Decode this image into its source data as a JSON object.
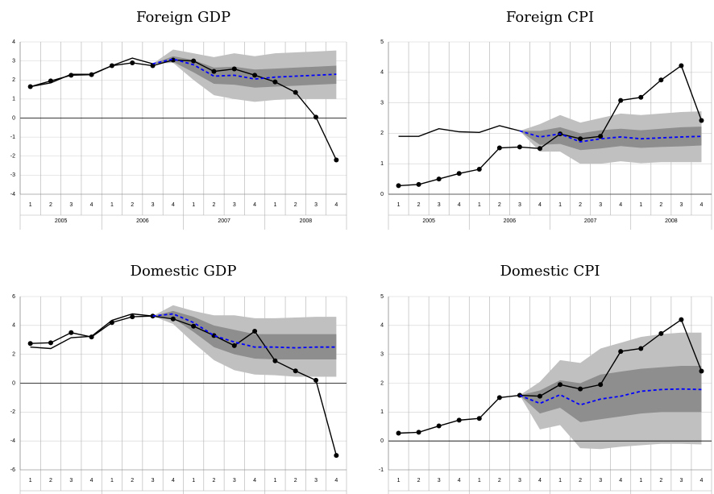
{
  "chart_data": [
    {
      "type": "line",
      "title": "Foreign GDP",
      "categories": [
        "1",
        "2",
        "3",
        "4",
        "1",
        "2",
        "3",
        "4",
        "1",
        "2",
        "3",
        "4",
        "1",
        "2",
        "3",
        "4"
      ],
      "years": [
        "2005",
        "2006",
        "2007",
        "2008"
      ],
      "ylim": [
        -4,
        4
      ],
      "yticks": [
        -4,
        -3,
        -2,
        -1,
        0,
        1,
        2,
        3,
        4
      ],
      "grid": true,
      "bands": [
        {
          "color": "#c0c0c0",
          "lower": [
            null,
            null,
            null,
            null,
            null,
            null,
            2.85,
            2.9,
            2.0,
            1.2,
            1.0,
            0.85,
            0.95,
            1.0,
            1.0,
            1.0
          ],
          "upper": [
            null,
            null,
            null,
            null,
            null,
            null,
            2.85,
            3.6,
            3.4,
            3.2,
            3.4,
            3.25,
            3.4,
            3.45,
            3.5,
            3.55
          ]
        },
        {
          "color": "#8e8e8e",
          "lower": [
            null,
            null,
            null,
            null,
            null,
            null,
            2.85,
            2.95,
            2.4,
            1.8,
            1.75,
            1.6,
            1.65,
            1.7,
            1.75,
            1.8
          ],
          "upper": [
            null,
            null,
            null,
            null,
            null,
            null,
            2.85,
            3.25,
            3.05,
            2.65,
            2.7,
            2.55,
            2.6,
            2.65,
            2.7,
            2.75
          ]
        }
      ],
      "series": [
        {
          "color": "#000000",
          "markers": true,
          "values": [
            1.65,
            1.95,
            2.25,
            2.28,
            2.75,
            2.9,
            2.75,
            3.05,
            3.0,
            2.45,
            2.58,
            2.25,
            1.9,
            1.35,
            0.05,
            -2.2
          ]
        },
        {
          "color": "#000000",
          "values": [
            1.65,
            1.85,
            2.3,
            2.3,
            2.75,
            3.15,
            2.85,
            null,
            null,
            null,
            null,
            null,
            null,
            null,
            null,
            null
          ]
        },
        {
          "color": "#0000ff",
          "dash": true,
          "values": [
            null,
            null,
            null,
            null,
            null,
            null,
            2.85,
            3.1,
            2.8,
            2.2,
            2.25,
            2.05,
            2.15,
            2.2,
            2.25,
            2.3
          ]
        }
      ]
    },
    {
      "type": "line",
      "title": "Foreign CPI",
      "categories": [
        "1",
        "2",
        "3",
        "4",
        "1",
        "2",
        "3",
        "4",
        "1",
        "2",
        "3",
        "4",
        "1",
        "2",
        "3",
        "4"
      ],
      "years": [
        "2005",
        "2006",
        "2007",
        "2008"
      ],
      "ylim": [
        0,
        5
      ],
      "yticks": [
        0,
        1,
        2,
        3,
        4,
        5
      ],
      "grid": true,
      "bands": [
        {
          "color": "#c0c0c0",
          "lower": [
            null,
            null,
            null,
            null,
            null,
            null,
            2.08,
            1.4,
            1.4,
            1.0,
            1.0,
            1.08,
            1.02,
            1.05,
            1.05,
            1.05
          ],
          "upper": [
            null,
            null,
            null,
            null,
            null,
            null,
            2.08,
            2.3,
            2.6,
            2.35,
            2.5,
            2.65,
            2.6,
            2.65,
            2.7,
            2.72
          ]
        },
        {
          "color": "#8e8e8e",
          "lower": [
            null,
            null,
            null,
            null,
            null,
            null,
            2.08,
            1.62,
            1.65,
            1.45,
            1.5,
            1.58,
            1.52,
            1.55,
            1.57,
            1.6
          ],
          "upper": [
            null,
            null,
            null,
            null,
            null,
            null,
            2.08,
            2.08,
            2.2,
            2.0,
            2.1,
            2.15,
            2.1,
            2.15,
            2.2,
            2.22
          ]
        }
      ],
      "series": [
        {
          "color": "#000000",
          "markers": true,
          "values": [
            0.28,
            0.32,
            0.5,
            0.68,
            0.82,
            1.52,
            1.55,
            1.5,
            1.98,
            1.82,
            1.9,
            3.08,
            3.18,
            3.75,
            4.22,
            2.42
          ]
        },
        {
          "color": "#000000",
          "values": [
            1.9,
            1.9,
            2.15,
            2.05,
            2.03,
            2.25,
            2.08,
            null,
            null,
            null,
            null,
            null,
            null,
            null,
            null,
            null
          ]
        },
        {
          "color": "#0000ff",
          "dash": true,
          "values": [
            null,
            null,
            null,
            null,
            null,
            null,
            2.08,
            1.88,
            1.98,
            1.72,
            1.82,
            1.88,
            1.82,
            1.85,
            1.88,
            1.9
          ]
        }
      ]
    },
    {
      "type": "line",
      "title": "Domestic GDP",
      "categories": [
        "1",
        "2",
        "3",
        "4",
        "1",
        "2",
        "3",
        "4",
        "1",
        "2",
        "3",
        "4",
        "1",
        "2",
        "3",
        "4"
      ],
      "years": [
        "2005",
        "2006",
        "2007",
        "2008"
      ],
      "ylim": [
        -6,
        6
      ],
      "yticks": [
        -6,
        -4,
        -2,
        0,
        2,
        4,
        6
      ],
      "grid": true,
      "bands": [
        {
          "color": "#c0c0c0",
          "lower": [
            null,
            null,
            null,
            null,
            null,
            null,
            4.65,
            4.1,
            2.8,
            1.6,
            0.9,
            0.6,
            0.55,
            0.45,
            0.45,
            0.45
          ],
          "upper": [
            null,
            null,
            null,
            null,
            null,
            null,
            4.65,
            5.4,
            5.0,
            4.7,
            4.7,
            4.5,
            4.5,
            4.55,
            4.6,
            4.6
          ]
        },
        {
          "color": "#8e8e8e",
          "lower": [
            null,
            null,
            null,
            null,
            null,
            null,
            4.65,
            4.5,
            3.55,
            2.5,
            2.0,
            1.7,
            1.65,
            1.65,
            1.65,
            1.65
          ],
          "upper": [
            null,
            null,
            null,
            null,
            null,
            null,
            4.65,
            5.0,
            4.6,
            4.0,
            3.7,
            3.4,
            3.4,
            3.4,
            3.4,
            3.4
          ]
        }
      ],
      "series": [
        {
          "color": "#000000",
          "markers": true,
          "values": [
            2.75,
            2.8,
            3.5,
            3.2,
            4.2,
            4.6,
            4.65,
            4.45,
            3.95,
            3.3,
            2.6,
            3.6,
            1.55,
            0.85,
            0.2,
            -5.0
          ]
        },
        {
          "color": "#000000",
          "values": [
            2.5,
            2.4,
            3.15,
            3.25,
            4.35,
            4.8,
            4.65,
            null,
            null,
            null,
            null,
            null,
            null,
            null,
            null,
            null
          ]
        },
        {
          "color": "#0000ff",
          "dash": true,
          "values": [
            null,
            null,
            null,
            null,
            null,
            null,
            4.65,
            4.8,
            4.2,
            3.3,
            2.85,
            2.5,
            2.5,
            2.45,
            2.5,
            2.5
          ]
        }
      ]
    },
    {
      "type": "line",
      "title": "Domestic CPI",
      "categories": [
        "1",
        "2",
        "3",
        "4",
        "1",
        "2",
        "3",
        "4",
        "1",
        "2",
        "3",
        "4",
        "1",
        "2",
        "3",
        "4"
      ],
      "years": [
        "2005",
        "2006",
        "2007",
        "2008"
      ],
      "ylim": [
        -1,
        5
      ],
      "yticks": [
        -1,
        0,
        1,
        2,
        3,
        4,
        5
      ],
      "grid": true,
      "bands": [
        {
          "color": "#c0c0c0",
          "lower": [
            null,
            null,
            null,
            null,
            null,
            null,
            1.58,
            0.4,
            0.55,
            -0.25,
            -0.28,
            -0.2,
            -0.15,
            -0.1,
            -0.1,
            -0.12
          ],
          "upper": [
            null,
            null,
            null,
            null,
            null,
            null,
            1.58,
            2.05,
            2.8,
            2.7,
            3.2,
            3.4,
            3.6,
            3.7,
            3.75,
            3.75
          ]
        },
        {
          "color": "#8e8e8e",
          "lower": [
            null,
            null,
            null,
            null,
            null,
            null,
            1.58,
            0.95,
            1.15,
            0.65,
            0.75,
            0.85,
            0.95,
            1.0,
            1.0,
            1.0
          ],
          "upper": [
            null,
            null,
            null,
            null,
            null,
            null,
            1.58,
            1.75,
            2.1,
            2.0,
            2.3,
            2.4,
            2.5,
            2.55,
            2.6,
            2.6
          ]
        }
      ],
      "series": [
        {
          "color": "#000000",
          "markers": true,
          "values": [
            0.27,
            0.3,
            0.52,
            0.72,
            0.78,
            1.5,
            1.58,
            1.55,
            1.95,
            1.8,
            1.95,
            3.1,
            3.2,
            3.72,
            4.2,
            2.42
          ]
        },
        {
          "color": "#0000ff",
          "dash": true,
          "values": [
            null,
            null,
            null,
            null,
            null,
            null,
            1.58,
            1.3,
            1.6,
            1.25,
            1.45,
            1.55,
            1.72,
            1.78,
            1.8,
            1.78
          ]
        }
      ]
    }
  ]
}
